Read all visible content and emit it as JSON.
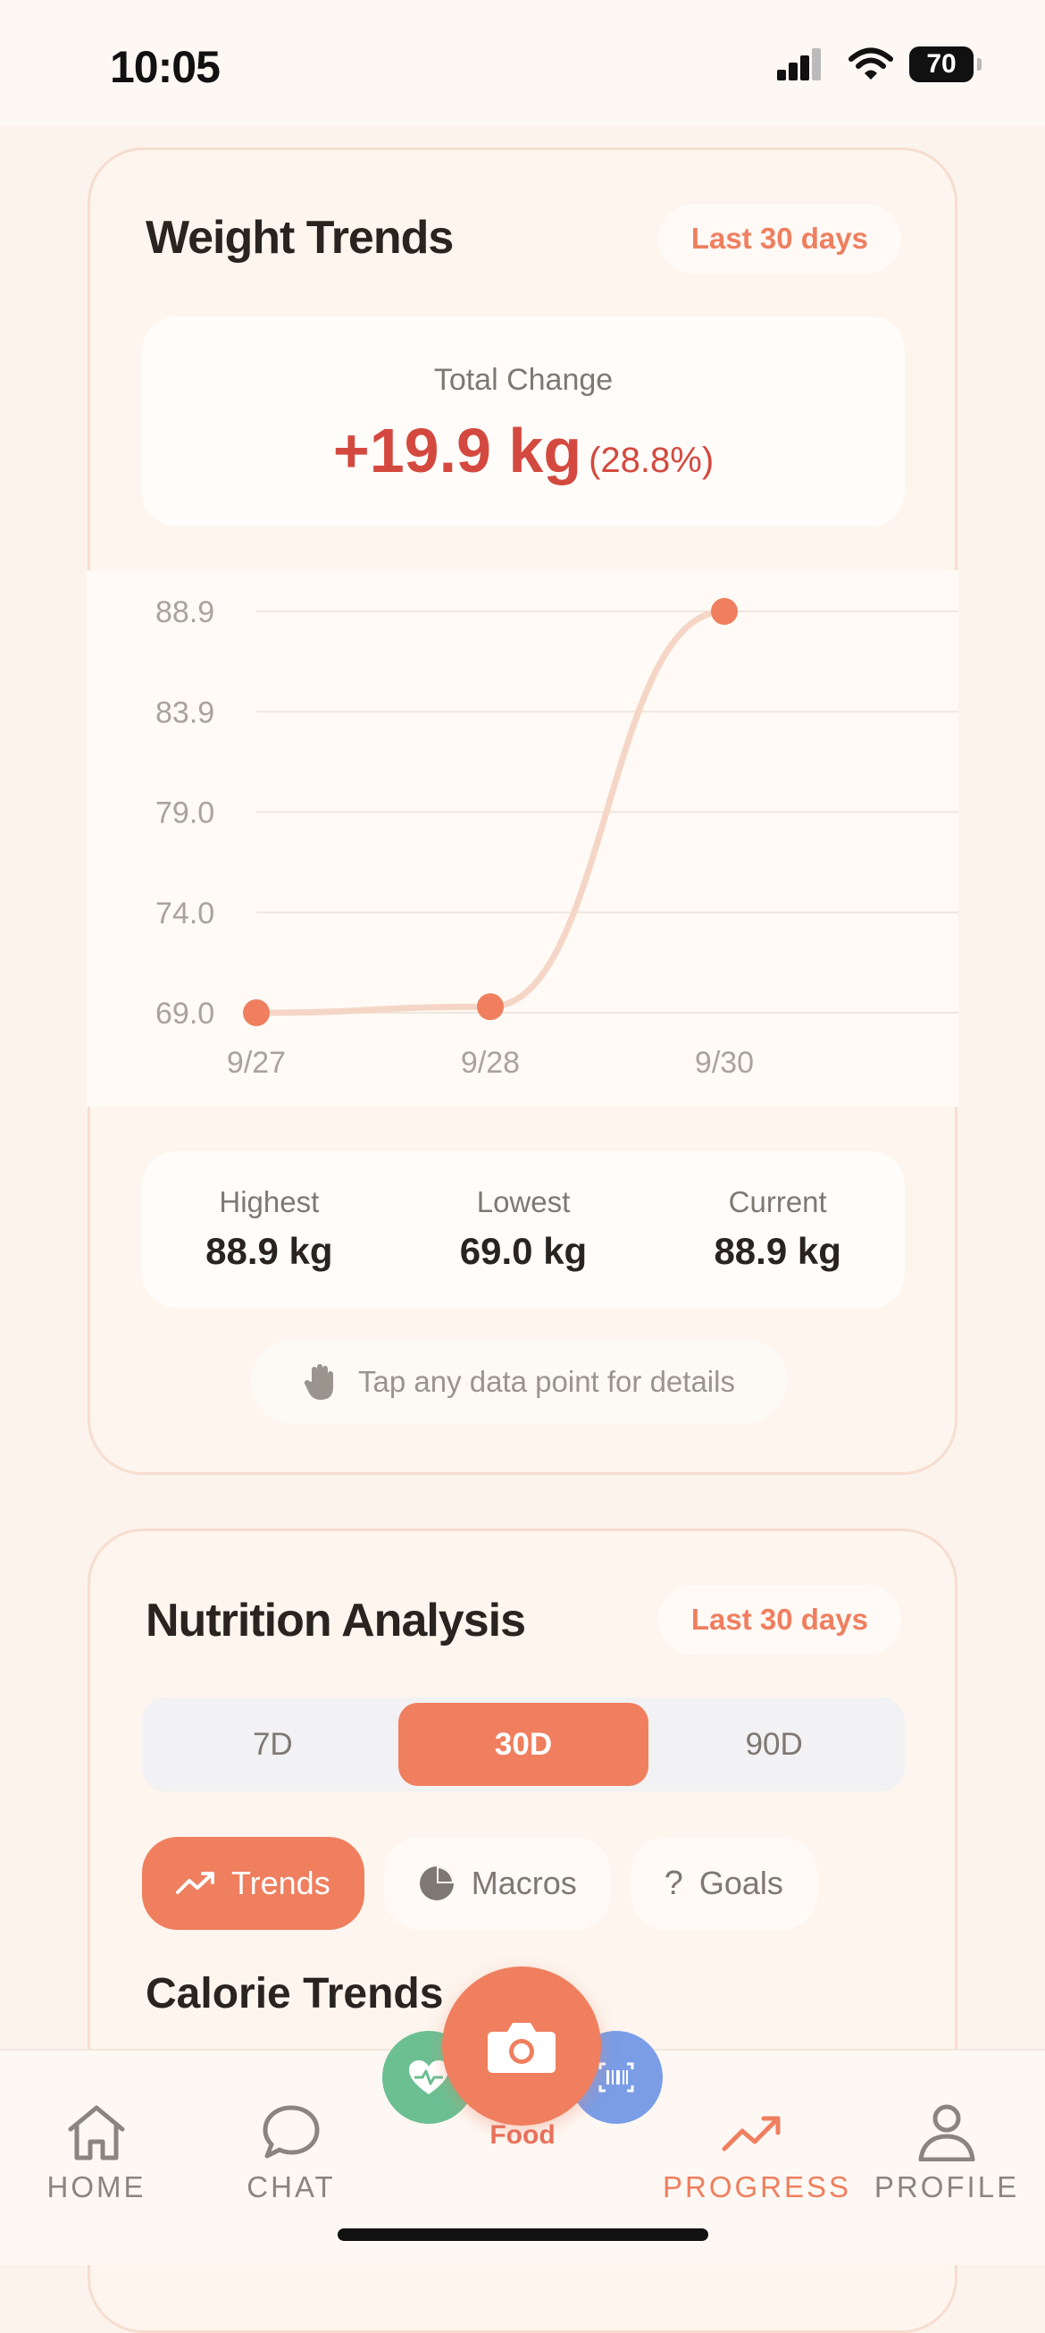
{
  "status_bar": {
    "time": "10:05",
    "battery": "70"
  },
  "weight_trends": {
    "title": "Weight Trends",
    "range_pill": "Last 30 days",
    "total_change_label": "Total Change",
    "total_change_value": "+19.9 kg",
    "total_change_percent": "(28.8%)",
    "stats": [
      {
        "label": "Highest",
        "value": "88.9 kg"
      },
      {
        "label": "Lowest",
        "value": "69.0 kg"
      },
      {
        "label": "Current",
        "value": "88.9 kg"
      }
    ],
    "hint": "Tap any data point for details"
  },
  "chart_data": {
    "type": "line",
    "categories": [
      "9/27",
      "9/28",
      "9/30"
    ],
    "values": [
      69.0,
      69.3,
      88.9
    ],
    "y_ticks": [
      "88.9",
      "83.9",
      "79.0",
      "74.0",
      "69.0"
    ],
    "ylim": [
      69.0,
      88.9
    ],
    "grid": true,
    "colors": {
      "line": "#f5d6c6",
      "point": "#ef7f5f",
      "grid": "#efe6de",
      "label": "#aaa39d"
    }
  },
  "nutrition": {
    "title": "Nutrition Analysis",
    "range_pill": "Last 30 days",
    "segments": [
      {
        "label": "7D",
        "active": false
      },
      {
        "label": "30D",
        "active": true
      },
      {
        "label": "90D",
        "active": false
      }
    ],
    "chips": [
      {
        "label": "Trends",
        "icon": "trend-up-icon",
        "active": true
      },
      {
        "label": "Macros",
        "icon": "pie-chart-icon",
        "active": false
      },
      {
        "label": "Goals",
        "icon": "question-icon",
        "active": false
      }
    ],
    "subheading": "Calorie Trends"
  },
  "tab_bar": {
    "home": "HOME",
    "chat": "CHAT",
    "food": "Food",
    "progress": "PROGRESS",
    "profile": "PROFILE",
    "active": "progress"
  },
  "colors": {
    "accent": "#ef7f5f",
    "negative": "#d4493f",
    "health": "#6bbf93",
    "scan": "#7a9de6"
  }
}
